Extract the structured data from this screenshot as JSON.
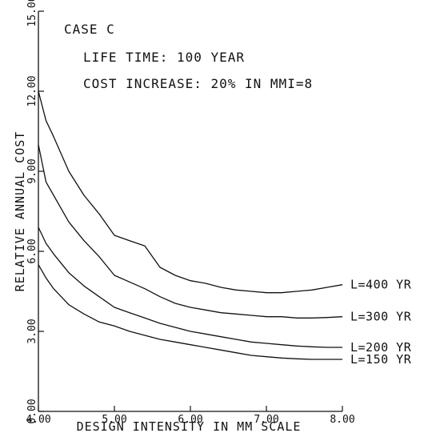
{
  "chart_data": {
    "type": "line",
    "xlabel": "DESIGN INTENSITY IN MM SCALE",
    "ylabel": "RELATIVE ANNUAL COST",
    "xlim": [
      4.0,
      8.0
    ],
    "ylim": [
      0.0,
      15.0
    ],
    "x_ticks": [
      "4.00",
      "5.00",
      "6.00",
      "7.00",
      "8.00"
    ],
    "y_ticks": [
      "0.00",
      "3.00",
      "6.00",
      "9.00",
      "12.00",
      "15.00"
    ],
    "annotations": [
      "CASE C",
      "LIFE TIME: 100 YEAR",
      "COST INCREASE: 20% IN MMI=8"
    ],
    "series": [
      {
        "name": "L=400 YR",
        "x": [
          4.0,
          4.1,
          4.2,
          4.4,
          4.6,
          4.8,
          5.0,
          5.2,
          5.4,
          5.6,
          5.8,
          6.0,
          6.2,
          6.4,
          6.6,
          6.8,
          7.0,
          7.2,
          7.4,
          7.6,
          7.8,
          8.0
        ],
        "y": [
          12.0,
          10.9,
          10.3,
          9.0,
          8.1,
          7.4,
          6.6,
          6.4,
          6.2,
          5.4,
          5.1,
          4.9,
          4.8,
          4.65,
          4.55,
          4.5,
          4.45,
          4.45,
          4.5,
          4.55,
          4.65,
          4.75
        ]
      },
      {
        "name": "L=300 YR",
        "x": [
          4.0,
          4.1,
          4.2,
          4.4,
          4.6,
          4.8,
          5.0,
          5.2,
          5.4,
          5.6,
          5.8,
          6.0,
          6.2,
          6.4,
          6.6,
          6.8,
          7.0,
          7.2,
          7.4,
          7.6,
          7.8,
          8.0
        ],
        "y": [
          10.0,
          8.6,
          8.1,
          7.1,
          6.4,
          5.8,
          5.1,
          4.85,
          4.6,
          4.3,
          4.05,
          3.9,
          3.8,
          3.7,
          3.65,
          3.6,
          3.55,
          3.55,
          3.5,
          3.5,
          3.52,
          3.55
        ]
      },
      {
        "name": "L=200 YR",
        "x": [
          4.0,
          4.1,
          4.2,
          4.4,
          4.6,
          4.8,
          5.0,
          5.2,
          5.4,
          5.6,
          5.8,
          6.0,
          6.2,
          6.4,
          6.6,
          6.8,
          7.0,
          7.2,
          7.4,
          7.6,
          7.8,
          8.0
        ],
        "y": [
          6.9,
          6.3,
          5.9,
          5.2,
          4.7,
          4.3,
          3.9,
          3.7,
          3.5,
          3.3,
          3.15,
          3.0,
          2.9,
          2.8,
          2.7,
          2.6,
          2.55,
          2.5,
          2.45,
          2.42,
          2.4,
          2.4
        ]
      },
      {
        "name": "L=150 YR",
        "x": [
          4.0,
          4.1,
          4.2,
          4.4,
          4.6,
          4.8,
          5.0,
          5.2,
          5.4,
          5.6,
          5.8,
          6.0,
          6.2,
          6.4,
          6.6,
          6.8,
          7.0,
          7.2,
          7.4,
          7.6,
          7.8,
          8.0
        ],
        "y": [
          5.5,
          5.0,
          4.6,
          4.0,
          3.65,
          3.35,
          3.2,
          3.0,
          2.85,
          2.7,
          2.6,
          2.5,
          2.4,
          2.3,
          2.2,
          2.1,
          2.05,
          2.0,
          1.97,
          1.95,
          1.95,
          1.95
        ]
      }
    ],
    "grid": false,
    "legend": "inline labels at right end of curves"
  }
}
